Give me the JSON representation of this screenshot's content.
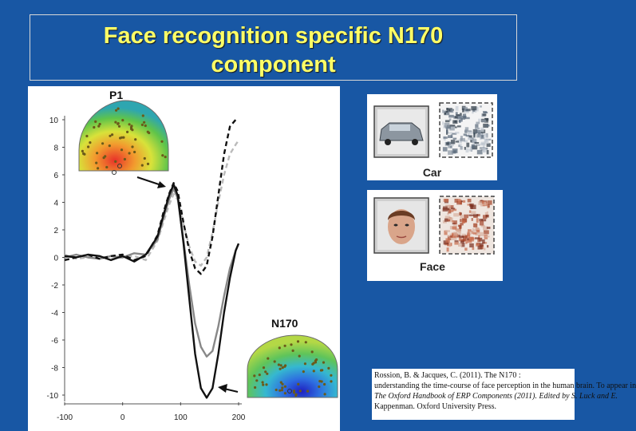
{
  "slide": {
    "title_line1": "Face recognition specific N170",
    "title_line2": "component",
    "background": "#1857a4",
    "title_color": "#ffff66"
  },
  "erp_figure": {
    "p1_label": "P1",
    "n170_label": "N170",
    "y_ticks": [
      "10",
      "8",
      "6",
      "4",
      "2",
      "0",
      "-2",
      "-4",
      "-6",
      "-8",
      "-10"
    ],
    "x_ticks": [
      "-100",
      "0",
      "100",
      "200"
    ]
  },
  "stimuli": {
    "car_label": "Car",
    "face_label": "Face"
  },
  "citation": {
    "line1": "Rossion, B. & Jacques, C. (2011). The N170 :",
    "line2": "understanding the time-course of face perception in the human brain. To appear in",
    "line3": "The Oxford Handbook of ERP Components (2011). Edited by S. Luck and E.",
    "line4": "Kappenman. Oxford University Press."
  },
  "chart_data": {
    "type": "line",
    "x_range": [
      -100,
      200
    ],
    "ylim": [
      -10,
      10
    ],
    "series": [
      {
        "x": [
          -100,
          -80,
          -60,
          -40,
          -20,
          0,
          20,
          40,
          60,
          70,
          80,
          88,
          95,
          105,
          115,
          125,
          135,
          145,
          155,
          165,
          175,
          185,
          195,
          200
        ],
        "y": [
          0.1,
          0.0,
          0.2,
          0.1,
          -0.2,
          0.1,
          -0.3,
          0.2,
          1.5,
          3.0,
          4.5,
          5.3,
          4.5,
          1.0,
          -3.0,
          -7.0,
          -9.5,
          -10.2,
          -9.5,
          -7.0,
          -4.0,
          -1.5,
          0.5,
          1.0
        ],
        "color": "#111111",
        "dash": false
      },
      {
        "x": [
          -100,
          -80,
          -60,
          -40,
          -20,
          0,
          20,
          40,
          60,
          70,
          80,
          88,
          95,
          105,
          115,
          125,
          135,
          145,
          155,
          165,
          175,
          185,
          195,
          200
        ],
        "y": [
          0.0,
          0.2,
          0.0,
          -0.1,
          0.1,
          0.0,
          0.3,
          0.2,
          1.3,
          2.8,
          4.2,
          5.0,
          4.3,
          1.2,
          -2.0,
          -4.8,
          -6.5,
          -7.2,
          -6.8,
          -5.0,
          -2.8,
          -0.8,
          0.5,
          1.0
        ],
        "color": "#888888",
        "dash": false
      },
      {
        "x": [
          -100,
          -80,
          -60,
          -40,
          -20,
          0,
          20,
          40,
          60,
          70,
          80,
          88,
          95,
          105,
          115,
          125,
          135,
          145,
          155,
          165,
          175,
          185,
          195,
          200
        ],
        "y": [
          -0.2,
          0.0,
          0.2,
          -0.1,
          0.1,
          0.2,
          -0.2,
          0.1,
          1.6,
          3.2,
          4.6,
          5.4,
          4.8,
          2.5,
          0.5,
          -0.8,
          -1.2,
          -0.6,
          1.5,
          4.5,
          7.5,
          9.5,
          10.0,
          10.0
        ],
        "color": "#111111",
        "dash": true
      },
      {
        "x": [
          -100,
          -80,
          -60,
          -40,
          -20,
          0,
          20,
          40,
          60,
          70,
          80,
          88,
          95,
          105,
          115,
          125,
          135,
          145,
          155,
          165,
          175,
          185,
          195,
          200
        ],
        "y": [
          0.2,
          -0.1,
          0.0,
          0.1,
          -0.1,
          0.0,
          0.1,
          -0.2,
          1.2,
          2.5,
          3.8,
          4.6,
          4.2,
          2.4,
          0.8,
          -0.3,
          -0.6,
          0.0,
          1.8,
          4.0,
          6.0,
          7.5,
          8.2,
          8.5
        ],
        "color": "#bbbbbb",
        "dash": true
      }
    ]
  }
}
